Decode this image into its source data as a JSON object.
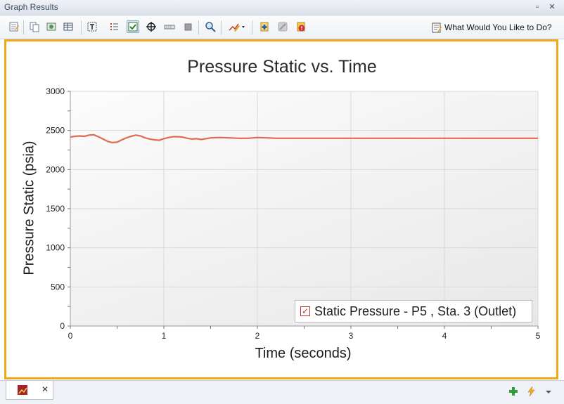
{
  "window": {
    "title": "Graph Results",
    "controls": [
      {
        "name": "pin-icon",
        "glyph": "▫"
      },
      {
        "name": "close-icon",
        "glyph": "✕"
      }
    ]
  },
  "toolbar": {
    "what_would_you_like": "What Would You Like to Do?"
  },
  "legend": {
    "label": "Static Pressure - P5 , Sta. 3 (Outlet)",
    "checked": true
  },
  "colors": {
    "frame": "#f2a71b",
    "series": "#e06a52"
  },
  "bottom": {
    "tab_close": "✕"
  },
  "chart_data": {
    "type": "line",
    "title": "Pressure Static vs. Time",
    "xlabel": "Time (seconds)",
    "ylabel": "Pressure Static (psia)",
    "xlim": [
      0,
      5
    ],
    "ylim": [
      0,
      3000
    ],
    "x_ticks": [
      0,
      1,
      2,
      3,
      4,
      5
    ],
    "y_ticks": [
      0,
      500,
      1000,
      1500,
      2000,
      2500,
      3000
    ],
    "grid": true,
    "legend_position": "bottom-right",
    "series": [
      {
        "name": "Static Pressure - P5 , Sta. 3 (Outlet)",
        "x": [
          0,
          0.05,
          0.1,
          0.15,
          0.2,
          0.25,
          0.3,
          0.35,
          0.4,
          0.45,
          0.5,
          0.55,
          0.6,
          0.65,
          0.7,
          0.75,
          0.8,
          0.85,
          0.9,
          0.95,
          1.0,
          1.05,
          1.1,
          1.15,
          1.2,
          1.25,
          1.3,
          1.35,
          1.4,
          1.45,
          1.5,
          1.6,
          1.7,
          1.8,
          1.9,
          2.0,
          2.1,
          2.2,
          2.3,
          2.5,
          3.0,
          3.5,
          4.0,
          4.5,
          5.0
        ],
        "y": [
          2415,
          2425,
          2430,
          2425,
          2440,
          2445,
          2420,
          2390,
          2360,
          2345,
          2350,
          2380,
          2405,
          2425,
          2440,
          2430,
          2405,
          2390,
          2380,
          2375,
          2395,
          2410,
          2420,
          2420,
          2415,
          2400,
          2390,
          2395,
          2385,
          2395,
          2405,
          2410,
          2405,
          2400,
          2400,
          2410,
          2405,
          2400,
          2400,
          2400,
          2400,
          2400,
          2400,
          2400,
          2400
        ]
      }
    ]
  }
}
